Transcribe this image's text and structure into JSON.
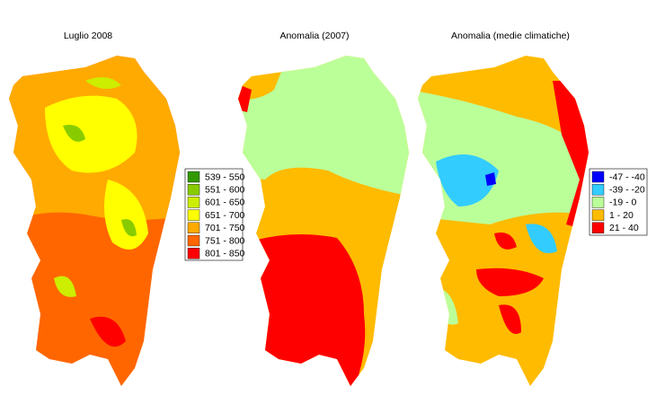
{
  "panels": [
    {
      "title": "Luglio 2008"
    },
    {
      "title": "Anomalia (2007)"
    },
    {
      "title": "Anomalia (medie climatiche)"
    }
  ],
  "legends": [
    {
      "items": [
        {
          "label": "539 - 550",
          "color": "#339900"
        },
        {
          "label": "551 - 600",
          "color": "#88cc00"
        },
        {
          "label": "601 - 650",
          "color": "#ccee00"
        },
        {
          "label": "651 - 700",
          "color": "#ffff00"
        },
        {
          "label": "701 - 750",
          "color": "#ffaa00"
        },
        {
          "label": "751 - 800",
          "color": "#ff6600"
        },
        {
          "label": "801 - 850",
          "color": "#ff0000"
        }
      ]
    },
    {
      "items": [
        {
          "label": "-47 - -40",
          "color": "#0000ff"
        },
        {
          "label": "-39 - -20",
          "color": "#33ccff"
        },
        {
          "label": "-19 - 0",
          "color": "#bbff99"
        },
        {
          "label": "1 - 20",
          "color": "#ffbb00"
        },
        {
          "label": "21 - 40",
          "color": "#ff0000"
        }
      ]
    }
  ]
}
